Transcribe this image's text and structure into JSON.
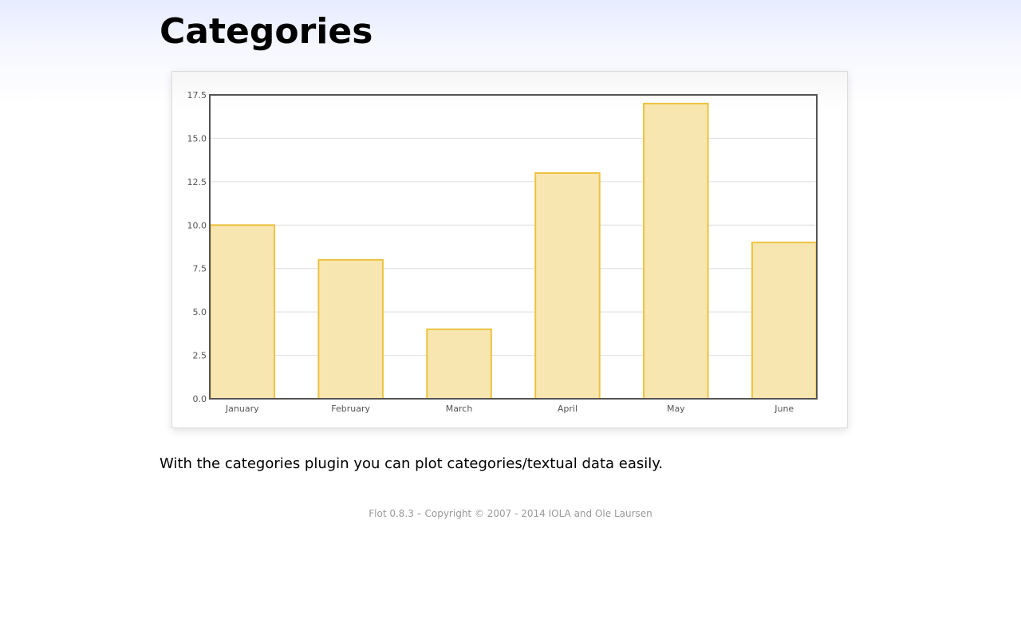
{
  "page": {
    "title": "Categories",
    "description": "With the categories plugin you can plot categories/textual data easily.",
    "footer": "Flot 0.8.3 – Copyright © 2007 - 2014 IOLA and Ole Laursen"
  },
  "chart_data": {
    "type": "bar",
    "title": "",
    "xlabel": "",
    "ylabel": "",
    "categories": [
      "January",
      "February",
      "March",
      "April",
      "May",
      "June"
    ],
    "values": [
      10,
      8,
      4,
      13,
      17,
      9
    ],
    "ylim": [
      0,
      17.5
    ],
    "yticks": [
      "0.0",
      "2.5",
      "5.0",
      "7.5",
      "10.0",
      "12.5",
      "15.0",
      "17.5"
    ],
    "ytick_values": [
      0,
      2.5,
      5,
      7.5,
      10,
      12.5,
      15,
      17.5
    ],
    "grid": true,
    "legend": "none",
    "colors": {
      "bar_fill": "#f8e6b1",
      "bar_stroke": "#edc240",
      "grid": "#dddddd",
      "axis": "#545454",
      "tick_text": "#545454"
    }
  }
}
